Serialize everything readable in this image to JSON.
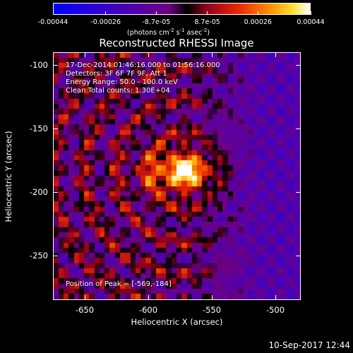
{
  "chart_data": {
    "type": "heatmap",
    "title": "Reconstructed RHESSI Image",
    "xlabel": "Heliocentric X (arcsec)",
    "ylabel": "Heliocentric Y (arcsec)",
    "xlim": [
      -675,
      -480
    ],
    "ylim": [
      -285,
      -90
    ],
    "x_ticks": [
      "-650",
      "-600",
      "-550",
      "-500"
    ],
    "x_tick_values": [
      -650,
      -600,
      -550,
      -500
    ],
    "y_ticks": [
      "-100",
      "-150",
      "-200",
      "-250"
    ],
    "y_tick_values": [
      -100,
      -150,
      -200,
      -250
    ],
    "colorbar": {
      "ticks": [
        "-0.00044",
        "-0.00026",
        "-8.7e-05",
        "8.7e-05",
        "0.00026",
        "0.00044"
      ],
      "tick_values": [
        -0.00044,
        -0.00026,
        -8.7e-05,
        8.7e-05,
        0.00026,
        0.00044
      ],
      "range": [
        -0.00044,
        0.00044
      ],
      "unit_prefix": "(photons cm",
      "unit_exp1": "-2",
      "unit_mid1": " s",
      "unit_exp2": "-1",
      "unit_mid2": " asec",
      "unit_exp3": "-2",
      "unit_suffix": ")",
      "colormap": "blue-purple-red-yellow-white"
    },
    "annotations": {
      "time_range": "17-Dec-2014 01:46:16.000 to 01:56:16.000",
      "detectors": "Detectors: 3F 6F 7F 9F, Att 1",
      "energy": "Energy Range: 50.0 - 100.0 keV",
      "clean": "Clean     Total counts: 1.30E+04",
      "peak": "Position of Peak = [-569,-184]"
    },
    "peak_position": [
      -569,
      -184
    ]
  },
  "footer": {
    "timestamp": "10-Sep-2017 12:44"
  }
}
